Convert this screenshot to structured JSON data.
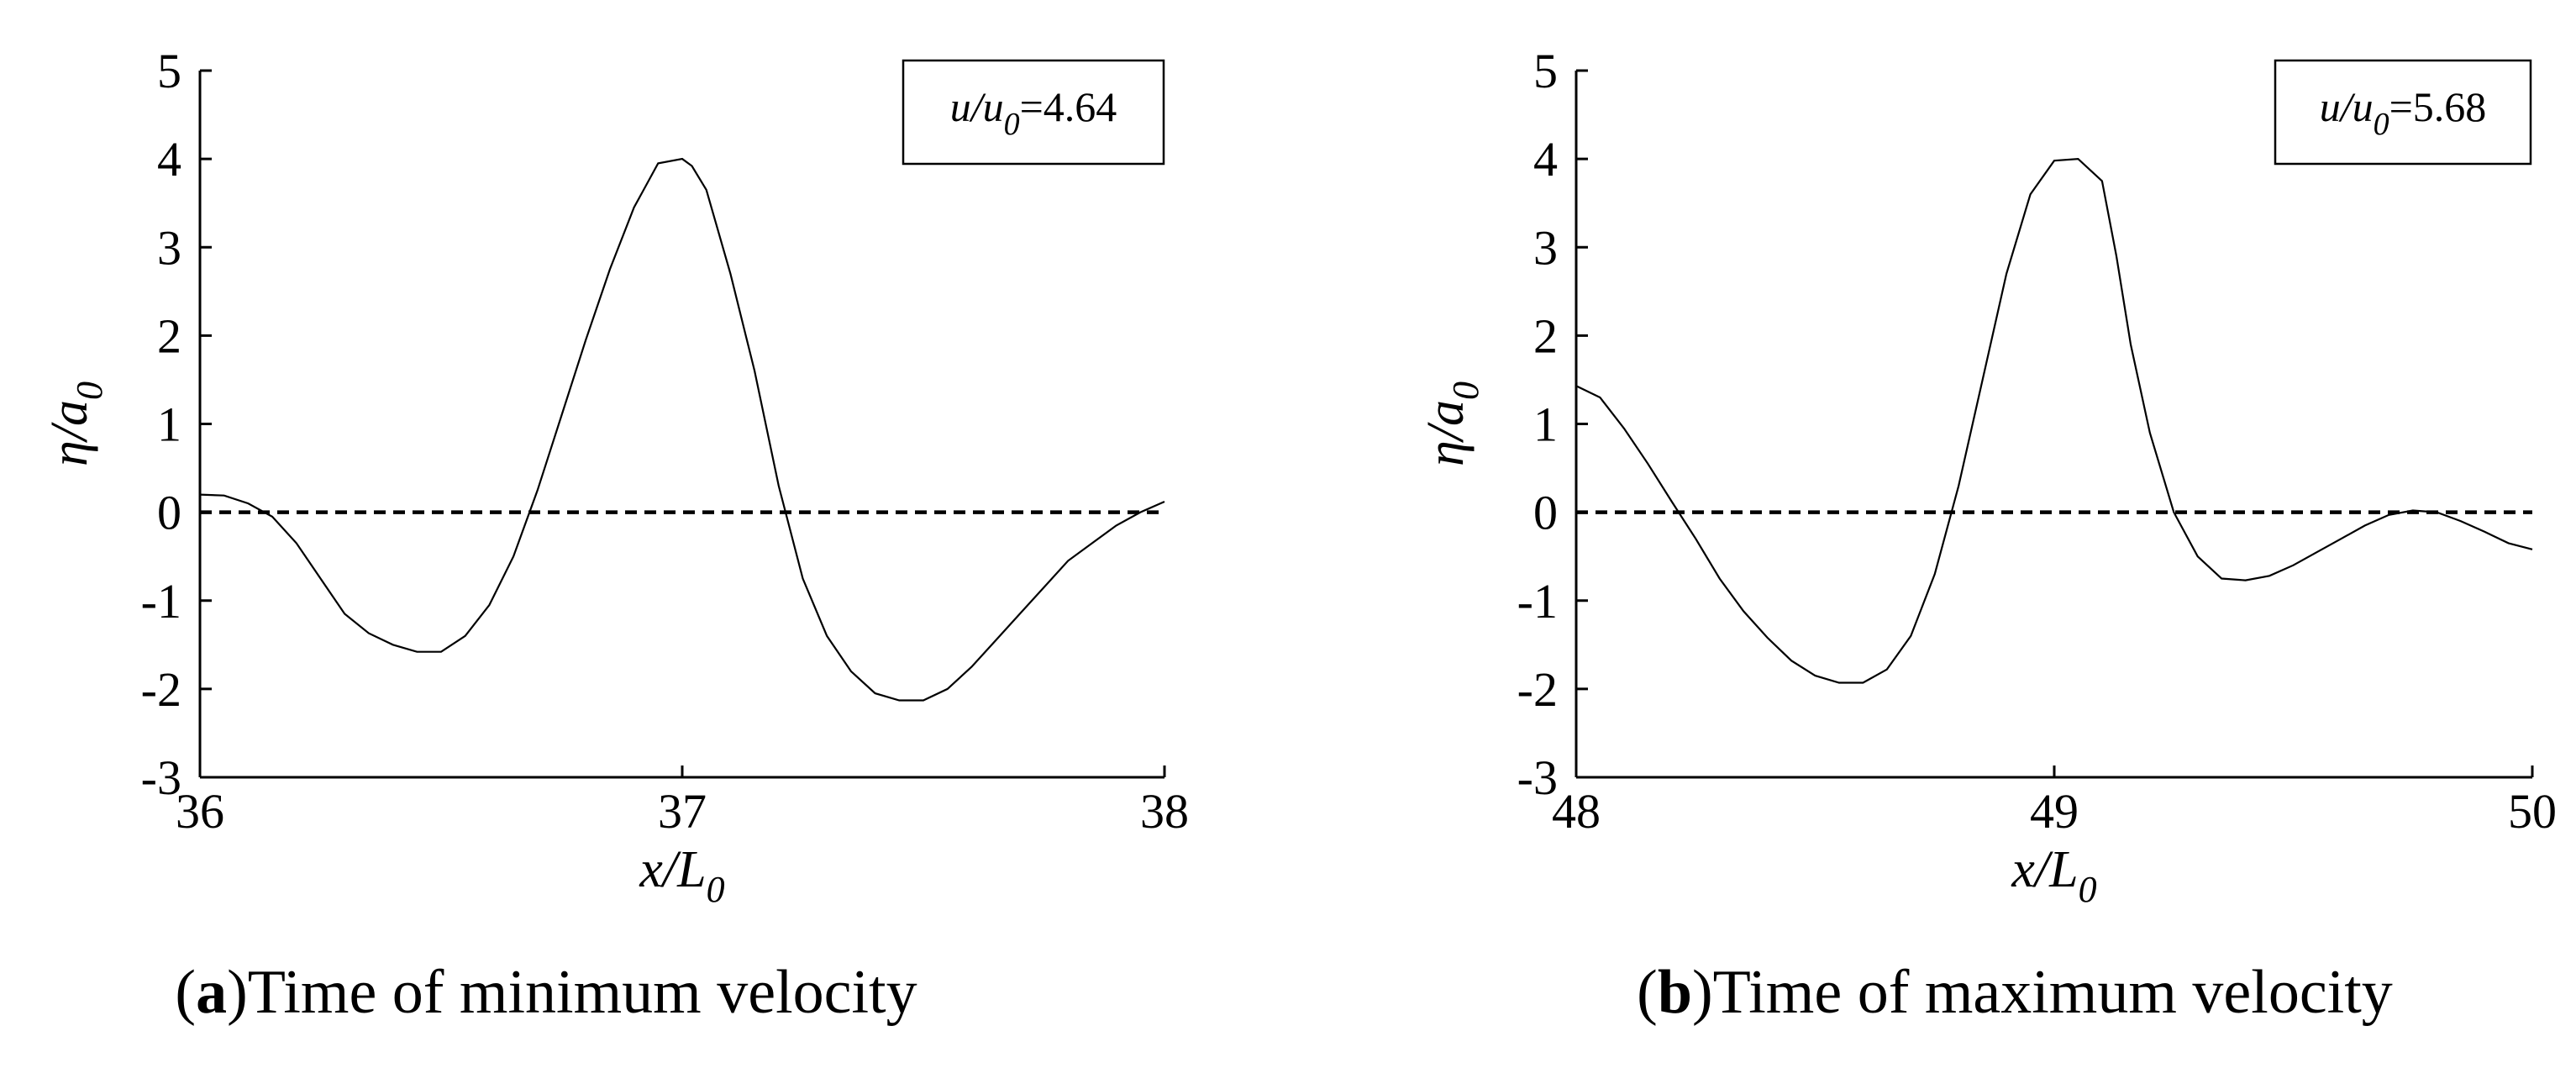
{
  "chart_data": [
    {
      "type": "line",
      "panel_label": "a",
      "caption": "Time of minimum velocity",
      "xlabel": "x/L",
      "xlabel_sub": "0",
      "ylabel": "η/a",
      "ylabel_sub": "0",
      "xlim": [
        36,
        38
      ],
      "ylim": [
        -3,
        5
      ],
      "xticks": [
        36,
        37,
        38
      ],
      "xtick_labels": [
        "36",
        "37",
        "38"
      ],
      "yticks": [
        -3,
        -2,
        -1,
        0,
        1,
        2,
        3,
        4,
        5
      ],
      "ytick_labels": [
        "-3",
        "-2",
        "-1",
        "0",
        "1",
        "2",
        "3",
        "4",
        "5"
      ],
      "annotation": {
        "prefix": "u/u",
        "sub": "0",
        "value": "=4.64"
      },
      "reference_line": {
        "y": 0,
        "style": "dashed"
      },
      "series": [
        {
          "x": [
            36.0,
            36.05,
            36.1,
            36.15,
            36.2,
            36.25,
            36.3,
            36.35,
            36.4,
            36.45,
            36.5,
            36.55,
            36.6,
            36.65,
            36.7,
            36.75,
            36.8,
            36.85,
            36.9,
            36.95,
            37.0,
            37.02,
            37.05,
            37.1,
            37.15,
            37.2,
            37.25,
            37.3,
            37.35,
            37.4,
            37.45,
            37.5,
            37.55,
            37.6,
            37.65,
            37.7,
            37.75,
            37.8,
            37.85,
            37.9,
            37.95,
            38.0
          ],
          "y": [
            0.2,
            0.19,
            0.1,
            -0.05,
            -0.35,
            -0.75,
            -1.15,
            -1.37,
            -1.5,
            -1.58,
            -1.58,
            -1.4,
            -1.05,
            -0.5,
            0.25,
            1.1,
            1.95,
            2.75,
            3.45,
            3.95,
            4.0,
            3.92,
            3.65,
            2.7,
            1.6,
            0.3,
            -0.75,
            -1.4,
            -1.8,
            -2.05,
            -2.13,
            -2.13,
            -2.0,
            -1.75,
            -1.45,
            -1.15,
            -0.85,
            -0.55,
            -0.35,
            -0.15,
            0.0,
            0.12
          ]
        }
      ]
    },
    {
      "type": "line",
      "panel_label": "b",
      "caption": "Time of maximum velocity",
      "xlabel": "x/L",
      "xlabel_sub": "0",
      "ylabel": "η/a",
      "ylabel_sub": "0",
      "xlim": [
        48,
        50
      ],
      "ylim": [
        -3,
        5
      ],
      "xticks": [
        48,
        49,
        50
      ],
      "xtick_labels": [
        "48",
        "49",
        "50"
      ],
      "yticks": [
        -3,
        -2,
        -1,
        0,
        1,
        2,
        3,
        4,
        5
      ],
      "ytick_labels": [
        "-3",
        "-2",
        "-1",
        "0",
        "1",
        "2",
        "3",
        "4",
        "5"
      ],
      "annotation": {
        "prefix": "u/u",
        "sub": "0",
        "value": "=5.68"
      },
      "reference_line": {
        "y": 0,
        "style": "dashed"
      },
      "series": [
        {
          "x": [
            48.0,
            48.05,
            48.1,
            48.15,
            48.2,
            48.25,
            48.3,
            48.35,
            48.4,
            48.45,
            48.5,
            48.55,
            48.6,
            48.65,
            48.7,
            48.75,
            48.8,
            48.85,
            48.9,
            48.95,
            49.0,
            49.05,
            49.1,
            49.13,
            49.16,
            49.2,
            49.25,
            49.3,
            49.35,
            49.4,
            49.45,
            49.5,
            49.55,
            49.6,
            49.65,
            49.7,
            49.75,
            49.8,
            49.85,
            49.9,
            49.95,
            50.0
          ],
          "y": [
            1.43,
            1.3,
            0.95,
            0.55,
            0.12,
            -0.3,
            -0.75,
            -1.12,
            -1.42,
            -1.68,
            -1.85,
            -1.93,
            -1.93,
            -1.78,
            -1.4,
            -0.7,
            0.3,
            1.5,
            2.7,
            3.6,
            3.98,
            4.0,
            3.75,
            2.9,
            1.9,
            0.9,
            0.0,
            -0.5,
            -0.75,
            -0.77,
            -0.72,
            -0.6,
            -0.45,
            -0.3,
            -0.15,
            -0.03,
            0.02,
            0.0,
            -0.1,
            -0.22,
            -0.35,
            -0.42
          ]
        }
      ]
    }
  ]
}
